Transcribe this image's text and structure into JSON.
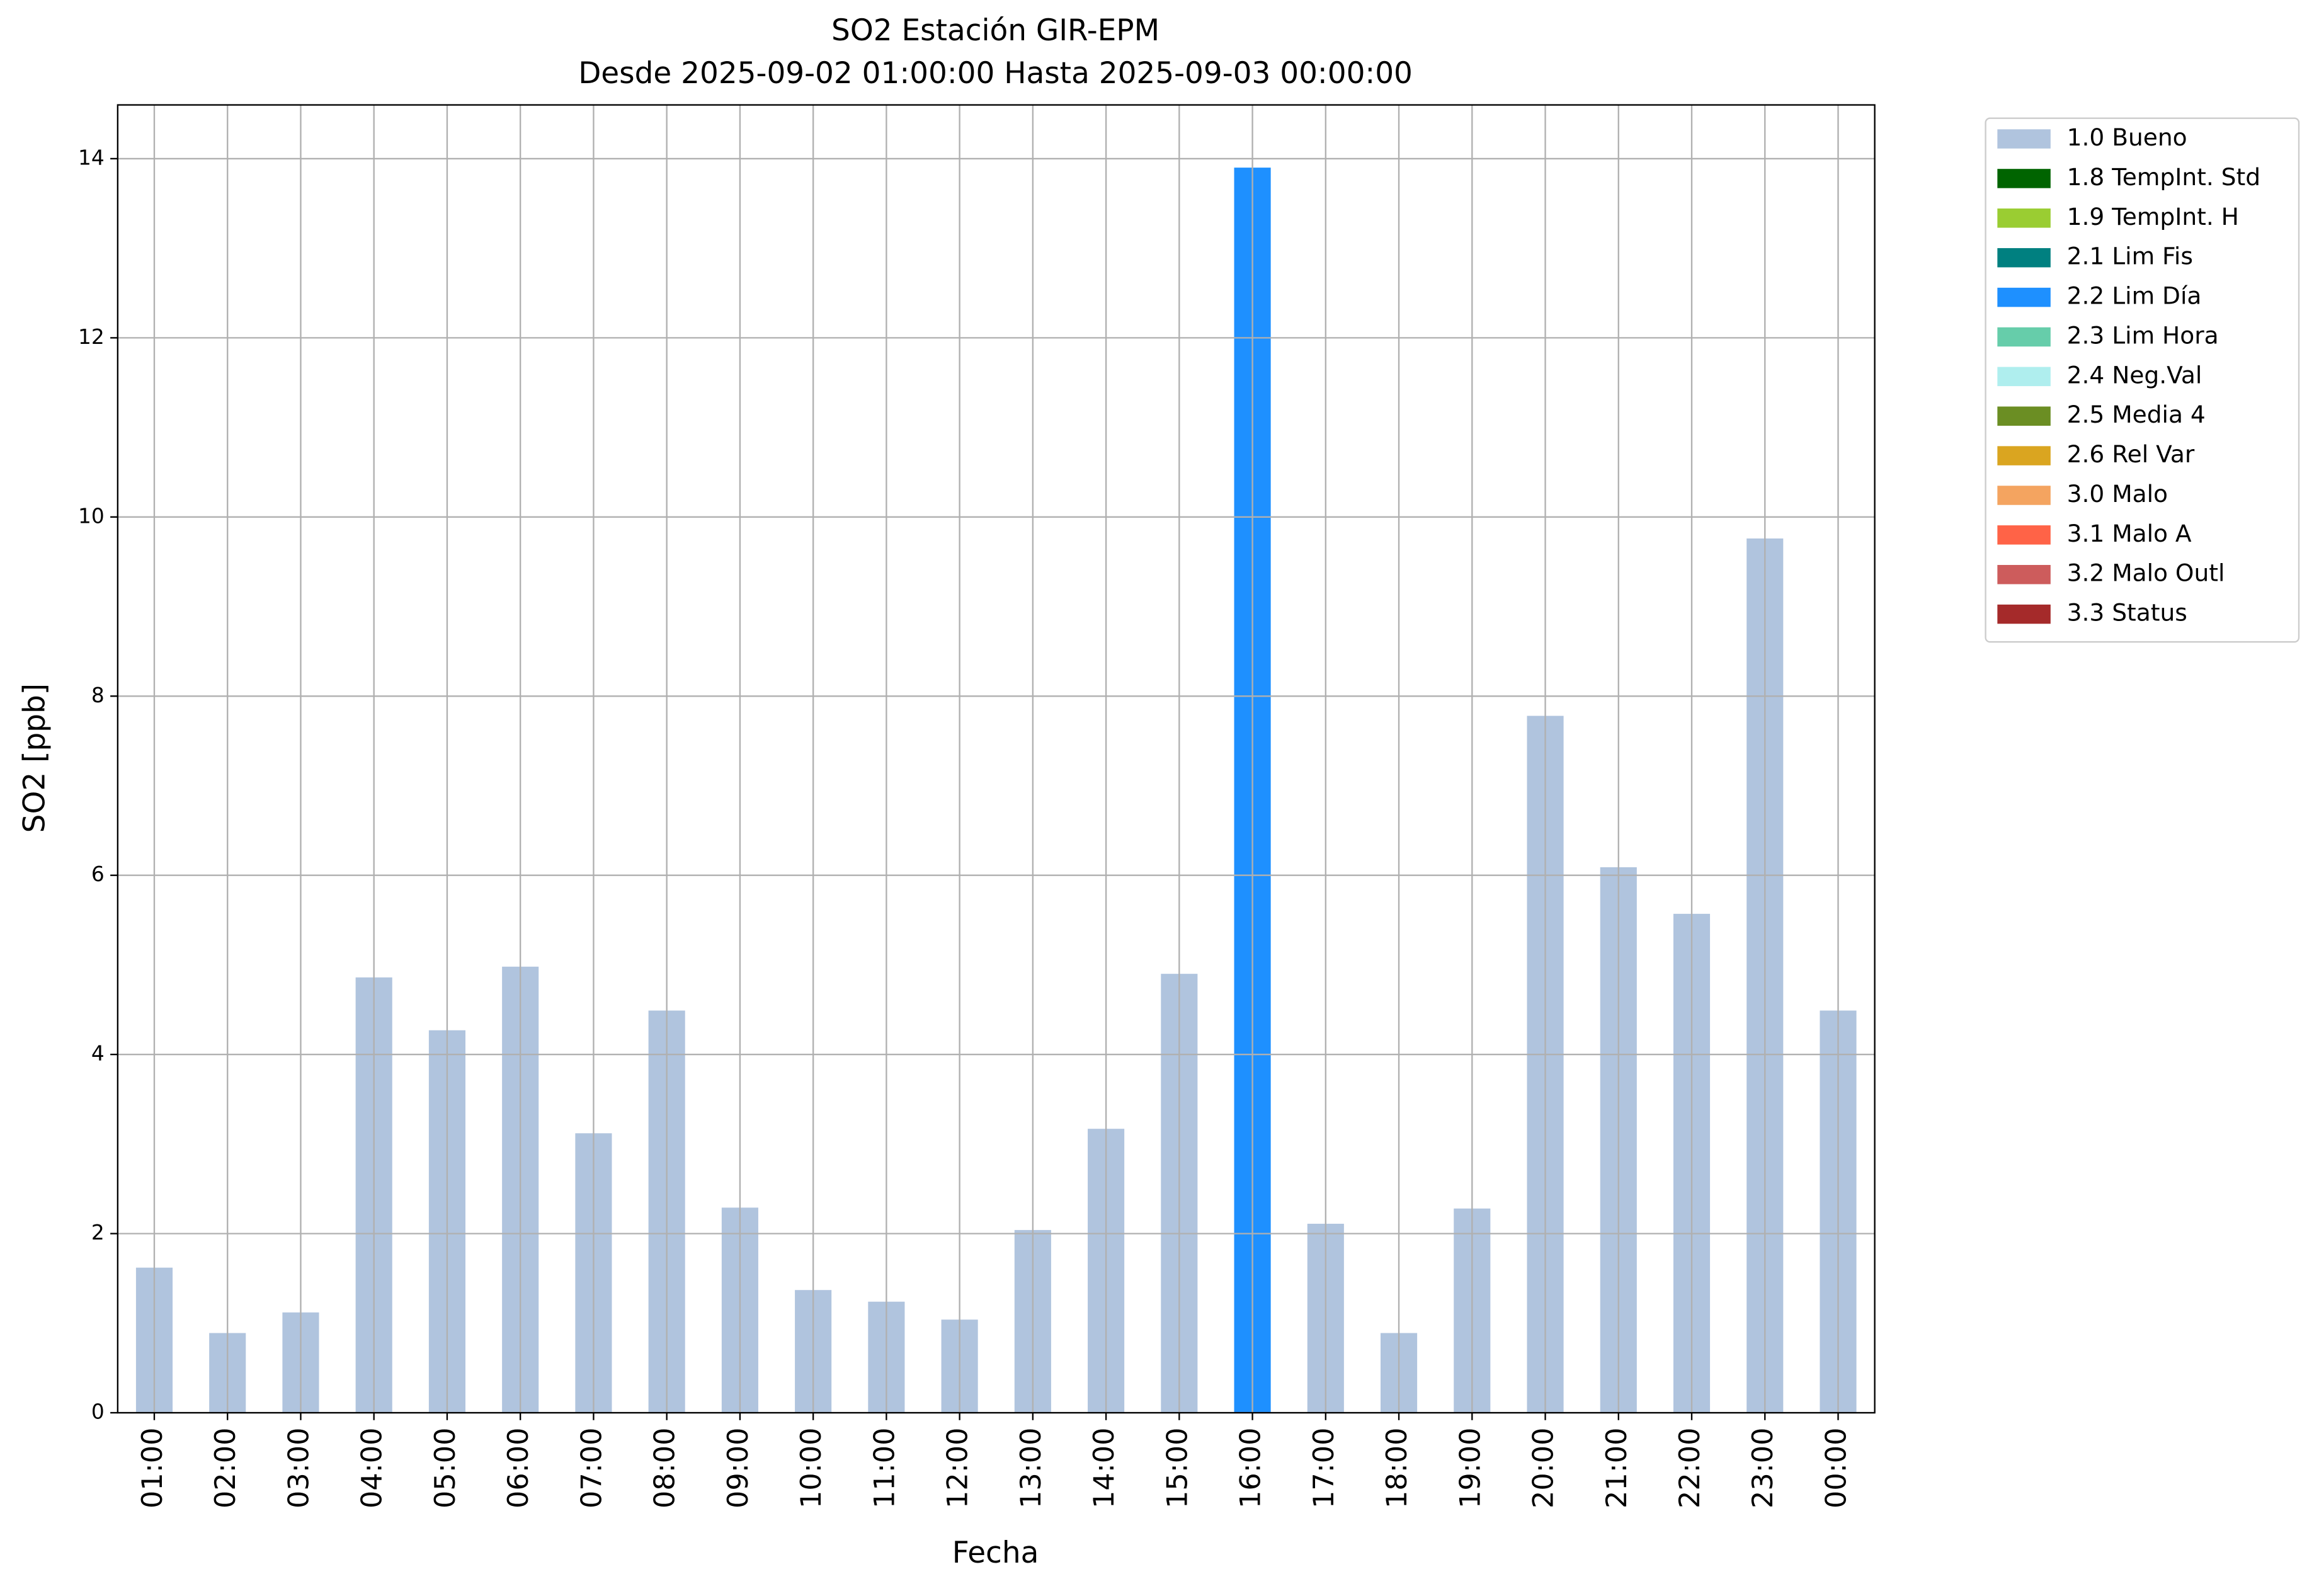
{
  "chart_data": {
    "type": "bar",
    "stacked": true,
    "title": "SO2 Estación GIR-EPM",
    "subtitle": "Desde 2025-09-02 01:00:00 Hasta 2025-09-03 00:00:00",
    "x_label": "Fecha",
    "y_label": "SO2 [ppb]",
    "categories": [
      "01:00",
      "02:00",
      "03:00",
      "04:00",
      "05:00",
      "06:00",
      "07:00",
      "08:00",
      "09:00",
      "10:00",
      "11:00",
      "12:00",
      "13:00",
      "14:00",
      "15:00",
      "16:00",
      "17:00",
      "18:00",
      "19:00",
      "20:00",
      "21:00",
      "22:00",
      "23:00",
      "00:00"
    ],
    "series": [
      {
        "name": "1.0 Bueno",
        "color": "#b0c4de",
        "values": [
          1.62,
          0.89,
          1.12,
          4.86,
          4.27,
          4.98,
          3.12,
          4.49,
          2.29,
          1.37,
          1.24,
          1.04,
          2.04,
          3.17,
          4.9,
          null,
          2.11,
          0.89,
          2.28,
          7.78,
          6.09,
          5.57,
          9.76,
          4.49
        ]
      },
      {
        "name": "1.8 TempInt. Std",
        "color": "#006400",
        "values": [
          null,
          null,
          null,
          null,
          null,
          null,
          null,
          null,
          null,
          null,
          null,
          null,
          null,
          null,
          null,
          null,
          null,
          null,
          null,
          null,
          null,
          null,
          null,
          null
        ]
      },
      {
        "name": "1.9 TempInt. H",
        "color": "#9acd32",
        "values": [
          null,
          null,
          null,
          null,
          null,
          null,
          null,
          null,
          null,
          null,
          null,
          null,
          null,
          null,
          null,
          null,
          null,
          null,
          null,
          null,
          null,
          null,
          null,
          null
        ]
      },
      {
        "name": "2.1 Lim Fis",
        "color": "#008080",
        "values": [
          null,
          null,
          null,
          null,
          null,
          null,
          null,
          null,
          null,
          null,
          null,
          null,
          null,
          null,
          null,
          null,
          null,
          null,
          null,
          null,
          null,
          null,
          null,
          null
        ]
      },
      {
        "name": "2.2 Lim Día",
        "color": "#1e90ff",
        "values": [
          null,
          null,
          null,
          null,
          null,
          null,
          null,
          null,
          null,
          null,
          null,
          null,
          null,
          null,
          null,
          13.9,
          null,
          null,
          null,
          null,
          null,
          null,
          null,
          null
        ]
      },
      {
        "name": "2.3 Lim Hora",
        "color": "#66cdaa",
        "values": [
          null,
          null,
          null,
          null,
          null,
          null,
          null,
          null,
          null,
          null,
          null,
          null,
          null,
          null,
          null,
          null,
          null,
          null,
          null,
          null,
          null,
          null,
          null,
          null
        ]
      },
      {
        "name": "2.4 Neg.Val",
        "color": "#afeeee",
        "values": [
          null,
          null,
          null,
          null,
          null,
          null,
          null,
          null,
          null,
          null,
          null,
          null,
          null,
          null,
          null,
          null,
          null,
          null,
          null,
          null,
          null,
          null,
          null,
          null
        ]
      },
      {
        "name": "2.5 Media 4",
        "color": "#6b8e23",
        "values": [
          null,
          null,
          null,
          null,
          null,
          null,
          null,
          null,
          null,
          null,
          null,
          null,
          null,
          null,
          null,
          null,
          null,
          null,
          null,
          null,
          null,
          null,
          null,
          null
        ]
      },
      {
        "name": "2.6 Rel Var",
        "color": "#daa520",
        "values": [
          null,
          null,
          null,
          null,
          null,
          null,
          null,
          null,
          null,
          null,
          null,
          null,
          null,
          null,
          null,
          null,
          null,
          null,
          null,
          null,
          null,
          null,
          null,
          null
        ]
      },
      {
        "name": "3.0 Malo",
        "color": "#f4a460",
        "values": [
          null,
          null,
          null,
          null,
          null,
          null,
          null,
          null,
          null,
          null,
          null,
          null,
          null,
          null,
          null,
          null,
          null,
          null,
          null,
          null,
          null,
          null,
          null,
          null
        ]
      },
      {
        "name": "3.1 Malo A",
        "color": "#ff6347",
        "values": [
          null,
          null,
          null,
          null,
          null,
          null,
          null,
          null,
          null,
          null,
          null,
          null,
          null,
          null,
          null,
          null,
          null,
          null,
          null,
          null,
          null,
          null,
          null,
          null
        ]
      },
      {
        "name": "3.2 Malo Outl",
        "color": "#cd5c5c",
        "values": [
          null,
          null,
          null,
          null,
          null,
          null,
          null,
          null,
          null,
          null,
          null,
          null,
          null,
          null,
          null,
          null,
          null,
          null,
          null,
          null,
          null,
          null,
          null,
          null
        ]
      },
      {
        "name": "3.3 Status",
        "color": "#a52a2a",
        "values": [
          null,
          null,
          null,
          null,
          null,
          null,
          null,
          null,
          null,
          null,
          null,
          null,
          null,
          null,
          null,
          null,
          null,
          null,
          null,
          null,
          null,
          null,
          null,
          null
        ]
      }
    ],
    "ylim": [
      0,
      14.6
    ],
    "yticks": [
      0,
      2,
      4,
      6,
      8,
      10,
      12,
      14
    ],
    "grid": true,
    "legend": "outside-right"
  }
}
